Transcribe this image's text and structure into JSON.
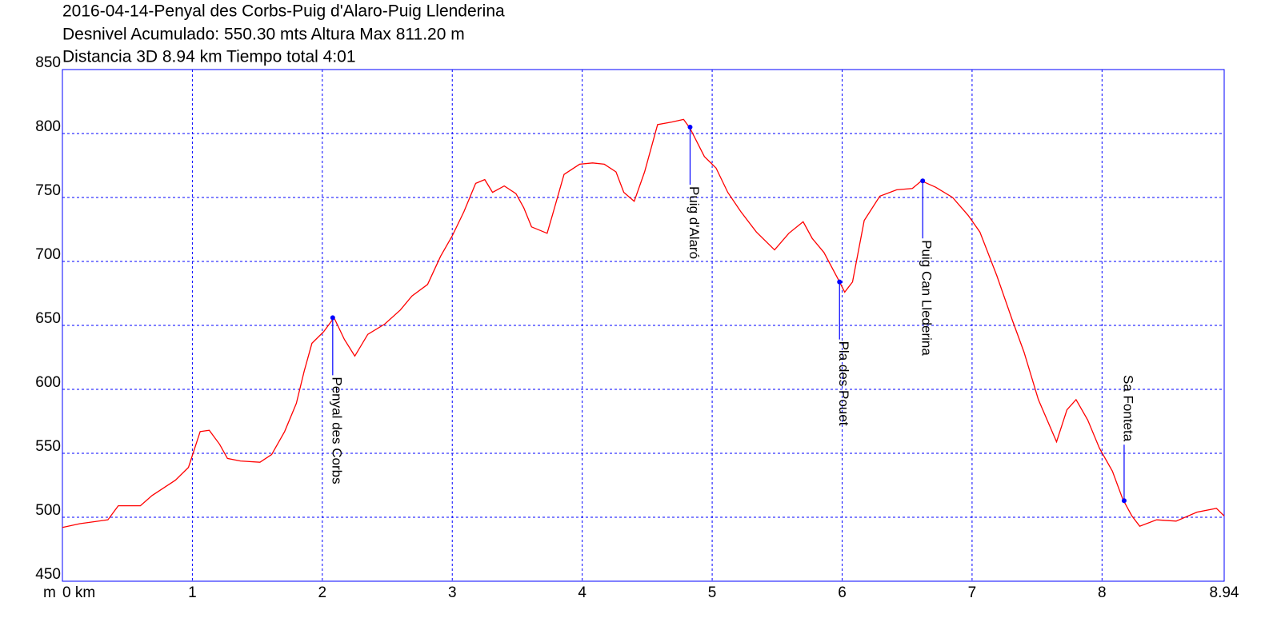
{
  "chart_data": {
    "type": "line",
    "title": "2016-04-14-Penyal des Corbs-Puig d'Alaro-Puig Llenderina",
    "subtitle": [
      "Desnivel Acumulado: 550.30 mts  Altura Max 811.20 m",
      "Distancia 3D 8.94 km  Tiempo total 4:01"
    ],
    "y_label": "m",
    "xlim": [
      0,
      8.94
    ],
    "ylim": [
      450,
      850
    ],
    "xticks": [
      {
        "value": 0,
        "label": "0 km"
      },
      1,
      2,
      3,
      4,
      5,
      6,
      7,
      8,
      8.94
    ],
    "yticks": [
      450,
      500,
      550,
      600,
      650,
      700,
      750,
      800,
      850
    ],
    "grid": true,
    "series": [
      {
        "color": "#ff0000",
        "x": [
          0,
          0.135,
          0.35,
          0.43,
          0.6,
          0.69,
          0.78,
          0.87,
          0.97,
          1.06,
          1.13,
          1.21,
          1.27,
          1.37,
          1.52,
          1.61,
          1.71,
          1.8,
          1.86,
          1.92,
          2.01,
          2.09,
          2.17,
          2.25,
          2.35,
          2.48,
          2.6,
          2.69,
          2.81,
          2.91,
          3.0,
          3.09,
          3.18,
          3.25,
          3.31,
          3.4,
          3.49,
          3.55,
          3.61,
          3.73,
          3.77,
          3.86,
          3.98,
          4.08,
          4.17,
          4.26,
          4.32,
          4.4,
          4.48,
          4.58,
          4.69,
          4.78,
          4.83,
          4.94,
          5.03,
          5.12,
          5.22,
          5.34,
          5.48,
          5.59,
          5.7,
          5.77,
          5.86,
          5.97,
          6.02,
          6.08,
          6.17,
          6.29,
          6.42,
          6.54,
          6.61,
          6.72,
          6.85,
          6.97,
          7.06,
          7.19,
          7.31,
          7.4,
          7.51,
          7.65,
          7.73,
          7.8,
          7.89,
          7.98,
          8.08,
          8.16,
          8.23,
          8.29,
          8.42,
          8.57,
          8.73,
          8.88,
          8.94
        ],
        "values": [
          492,
          495,
          498,
          509,
          509,
          517,
          523,
          529,
          539,
          567,
          568,
          557,
          546,
          544,
          543,
          549,
          567,
          589,
          614,
          636,
          645,
          656,
          639,
          626,
          643,
          651,
          662,
          673,
          682,
          704,
          720,
          739,
          761,
          764,
          754,
          759,
          753,
          742,
          727,
          722,
          736,
          768,
          776,
          777,
          776,
          770,
          754,
          747,
          770,
          807,
          809,
          811,
          804,
          782,
          773,
          754,
          739,
          723,
          709,
          722,
          731,
          718,
          707,
          686,
          676,
          684,
          732,
          751,
          756,
          757,
          763,
          758,
          750,
          736,
          723,
          689,
          654,
          629,
          592,
          559,
          584,
          592,
          576,
          554,
          536,
          514,
          501,
          493,
          498,
          497,
          504,
          507,
          501
        ]
      }
    ],
    "waypoints": [
      {
        "label": "Penyal des Corbs",
        "x": 2.08,
        "y": 656,
        "side": "below"
      },
      {
        "label": "Puig d'Alaró",
        "x": 4.83,
        "y": 805,
        "side": "below"
      },
      {
        "label": "Pla des Pouet",
        "x": 5.98,
        "y": 684,
        "side": "below"
      },
      {
        "label": "Puig Can Llederina",
        "x": 6.62,
        "y": 763,
        "side": "below"
      },
      {
        "label": "Sa Fonteta",
        "x": 8.17,
        "y": 513,
        "side": "above"
      }
    ]
  }
}
